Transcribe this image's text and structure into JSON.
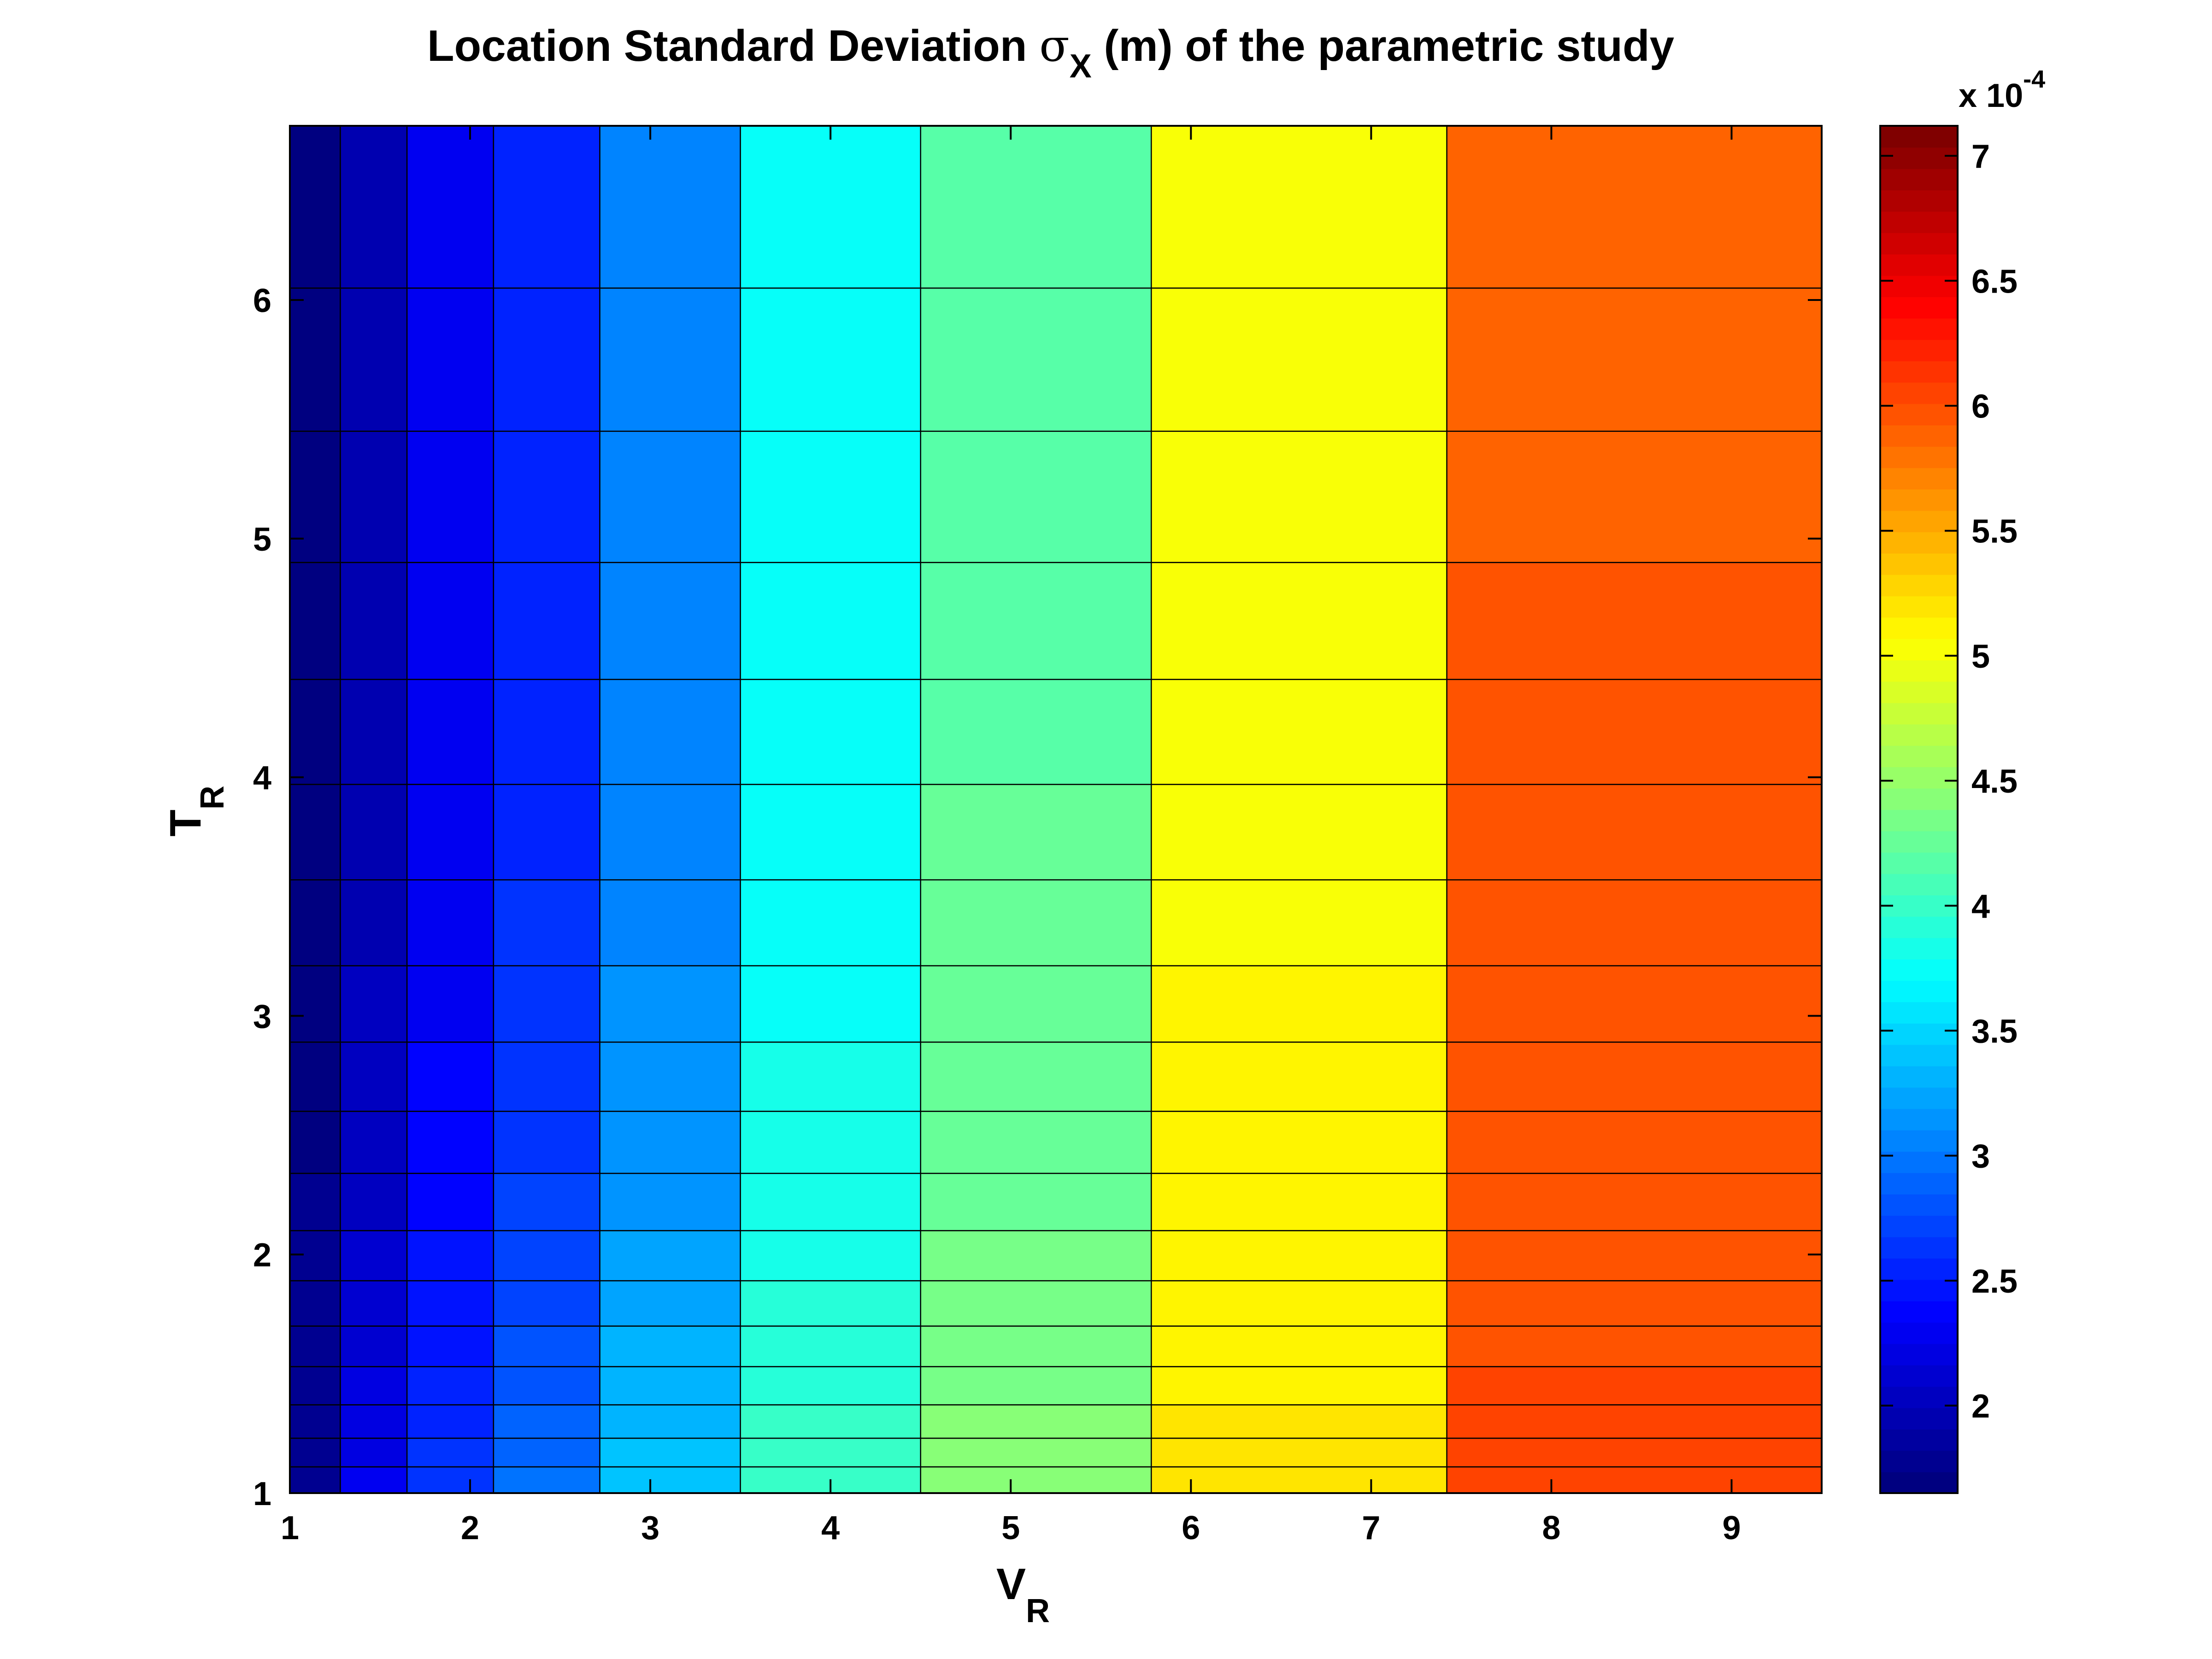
{
  "chart_data": {
    "type": "heatmap",
    "title": {
      "prefix": "Location Standard Deviation ",
      "symbol": "σ",
      "symbol_sub": "X",
      "suffix": " (m) of the parametric study"
    },
    "xlabel": {
      "main": "V",
      "sub": "R"
    },
    "ylabel": {
      "main": "T",
      "sub": "R"
    },
    "x_edges": [
      1.0,
      1.28,
      1.65,
      2.13,
      2.72,
      3.5,
      4.5,
      5.78,
      7.42,
      9.5
    ],
    "y_edges": [
      1.0,
      1.11,
      1.23,
      1.37,
      1.53,
      1.7,
      1.89,
      2.1,
      2.34,
      2.6,
      2.89,
      3.21,
      3.57,
      3.97,
      4.41,
      4.9,
      5.45,
      6.05,
      6.73
    ],
    "x_ticks": [
      1,
      2,
      3,
      4,
      5,
      6,
      7,
      8,
      9
    ],
    "y_ticks": [
      1,
      2,
      3,
      4,
      5,
      6
    ],
    "xlim": [
      1,
      9.5
    ],
    "ylim": [
      1,
      6.73
    ],
    "column_values": [
      1.72,
      1.95,
      2.25,
      2.55,
      3.05,
      3.72,
      4.2,
      5.05,
      5.92
    ],
    "bottom_increase": [
      0.05,
      0.33,
      0.42,
      0.42,
      0.4,
      0.33,
      0.25,
      0.15,
      0.15
    ],
    "bottom_decay": 1.1,
    "colorbar": {
      "range": [
        1.65,
        7.12
      ],
      "ticks": [
        2,
        2.5,
        3,
        3.5,
        4,
        4.5,
        5,
        5.5,
        6,
        6.5,
        7
      ],
      "tick_labels": [
        "2",
        "2.5",
        "3",
        "3.5",
        "4",
        "4.5",
        "5",
        "5.5",
        "6",
        "6.5",
        "7"
      ],
      "multiplier_prefix": "x 10",
      "multiplier_exponent": "-4",
      "colormap": "jet",
      "levels": 64
    },
    "grid": false
  }
}
